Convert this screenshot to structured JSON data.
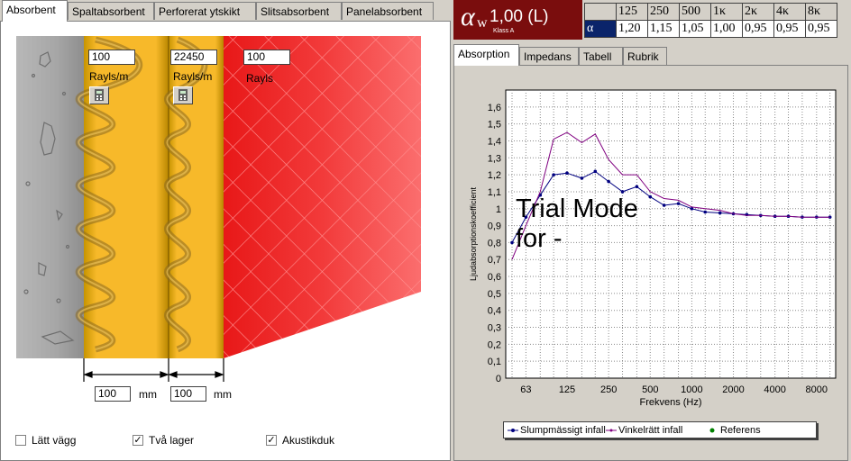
{
  "left_tabs": [
    "Absorbent",
    "Spaltabsorbent",
    "Perforerat ytskikt",
    "Slitsabsorbent",
    "Panelabsorbent"
  ],
  "layers": {
    "layer1": {
      "value": "100",
      "unit": "Rayls/m"
    },
    "layer2": {
      "value": "22450",
      "unit": "Rayls/m"
    },
    "layer3": {
      "value": "100",
      "unit": "Rayls"
    }
  },
  "thickness": [
    {
      "value": "100",
      "unit": "mm"
    },
    {
      "value": "100",
      "unit": "mm"
    }
  ],
  "options": [
    {
      "label": "Lätt vägg",
      "checked": false
    },
    {
      "label": "Två lager",
      "checked": true
    },
    {
      "label": "Akustikduk",
      "checked": true
    }
  ],
  "rating": {
    "symbol": "α",
    "sub": "w",
    "value": "1,00 (L)",
    "class_label": "Klass A"
  },
  "freq_table": {
    "headers": [
      "125",
      "250",
      "500",
      "1κ",
      "2κ",
      "4κ",
      "8κ"
    ],
    "row_label": "α",
    "values": [
      "1,20",
      "1,15",
      "1,05",
      "1,00",
      "0,95",
      "0,95",
      "0,95"
    ]
  },
  "right_tabs": [
    "Absorption",
    "Impedans",
    "Tabell",
    "Rubrik"
  ],
  "watermark": [
    "Trial Mode",
    "for -"
  ],
  "chart_data": {
    "type": "line",
    "xlabel": "Frekvens (Hz)",
    "ylabel": "Ljudabsorptionskoefficient",
    "ylim": [
      0,
      1.7
    ],
    "x_scale": "log",
    "xticks": [
      "63",
      "125",
      "250",
      "500",
      "1000",
      "2000",
      "4000",
      "8000"
    ],
    "yticks": [
      "0",
      "0,1",
      "0,2",
      "0,3",
      "0,4",
      "0,5",
      "0,6",
      "0,7",
      "0,8",
      "0,9",
      "1",
      "1,1",
      "1,2",
      "1,3",
      "1,4",
      "1,5",
      "1,6"
    ],
    "grid": true,
    "x": [
      50,
      63,
      80,
      100,
      125,
      160,
      200,
      250,
      315,
      400,
      500,
      630,
      800,
      1000,
      1250,
      1600,
      2000,
      2500,
      3150,
      4000,
      5000,
      6300,
      8000,
      10000
    ],
    "series": [
      {
        "name": "Slumpmässigt infall",
        "color": "#000080",
        "values": [
          0.8,
          0.95,
          1.08,
          1.2,
          1.21,
          1.18,
          1.22,
          1.16,
          1.1,
          1.13,
          1.07,
          1.02,
          1.03,
          1.0,
          0.98,
          0.975,
          0.97,
          0.965,
          0.96,
          0.955,
          0.955,
          0.95,
          0.95,
          0.95
        ]
      },
      {
        "name": "Vinkelrätt infall",
        "color": "#800080",
        "values": [
          0.7,
          0.9,
          1.1,
          1.41,
          1.45,
          1.39,
          1.44,
          1.29,
          1.2,
          1.2,
          1.1,
          1.06,
          1.05,
          1.01,
          1.0,
          0.99,
          0.97,
          0.96,
          0.96,
          0.955,
          0.955,
          0.95,
          0.95,
          0.95
        ]
      }
    ],
    "legend": [
      {
        "label": "Slumpmässigt infall",
        "color": "#000080"
      },
      {
        "label": "Vinkelrätt infall",
        "color": "#800080"
      },
      {
        "label": "Referens",
        "color": "#008000"
      }
    ]
  }
}
